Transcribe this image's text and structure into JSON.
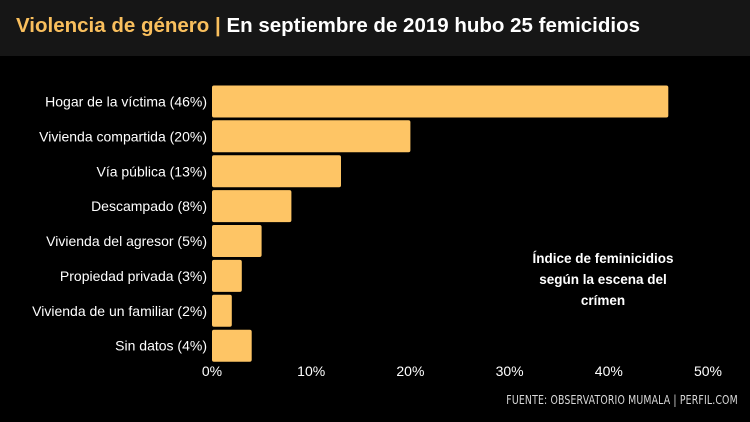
{
  "header": {
    "title_left": "Violencia de género",
    "separator": "|",
    "title_right": "En septiembre de 2019 hubo 25 femicidios"
  },
  "colors": {
    "accent": "#f9bf5d",
    "bar": "#fec565",
    "background": "#000000",
    "header_bg": "#161616"
  },
  "annotation": {
    "line1": "Índice de feminicidios",
    "line2": "según la escena del",
    "line3": "crímen"
  },
  "source": "FUENTE: OBSERVATORIO MUMALA | PERFIL.COM",
  "chart_data": {
    "type": "bar",
    "orientation": "horizontal",
    "categories": [
      "Hogar de la víctima (46%)",
      "Vivienda compartida (20%)",
      "Vía pública (13%)",
      "Descampado (8%)",
      "Vivienda del agresor (5%)",
      "Propiedad privada (3%)",
      "Vivienda de un familiar (2%)",
      "Sin datos (4%)"
    ],
    "values": [
      46,
      20,
      13,
      8,
      5,
      3,
      2,
      4
    ],
    "xlim": [
      0,
      50
    ],
    "xticks": [
      "0%",
      "10%",
      "20%",
      "30%",
      "40%",
      "50%"
    ],
    "grid": false,
    "legend": "none"
  }
}
